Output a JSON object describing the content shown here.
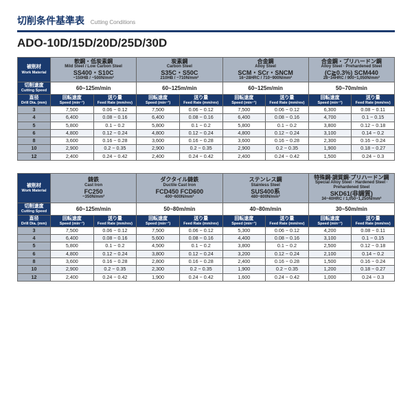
{
  "title_jp": "切削条件基準表",
  "title_en": "Cutting Conditions",
  "model": "ADO-10D/15D/20D/25D/30D",
  "labels": {
    "work_jp": "被削材",
    "work_en": "Work Material",
    "cut_jp": "切削速度",
    "cut_en": "Cutting Speed",
    "dia_jp": "直径",
    "dia_en": "Drill Dia. (mm)",
    "speed_jp": "回転速度",
    "speed_en": "Speed (min⁻¹)",
    "feed_jp": "送り量",
    "feed_en": "Feed Rate (mm/rev)"
  },
  "t1": {
    "materials": [
      {
        "jp": "軟鋼・低炭素鋼",
        "en": "Mild Steel / Low Carbon Steel",
        "code": "SS400・S10C",
        "spec": "~150HB / ~500N/mm²"
      },
      {
        "jp": "炭素鋼",
        "en": "Carbon Steel",
        "code": "S35C・S50C",
        "spec": "210HB / ~710N/mm²"
      },
      {
        "jp": "合金鋼",
        "en": "Alloy Steel",
        "code": "SCM・SCr・SNCM",
        "spec": "16~28HRC / 710~900N/mm²"
      },
      {
        "jp": "合金鋼・プリハードン鋼",
        "en": "Alloy Steel · Prehardened Steel",
        "code": "(C≧0.3%) SCM440",
        "spec": "28~34HRC / 900~1,050N/mm²"
      }
    ],
    "cutspeed": [
      "60~125m/min",
      "60~125m/min",
      "60~125m/min",
      "50~70m/min"
    ],
    "rows": [
      {
        "d": "3",
        "v": [
          "7,500",
          "0.06 ~ 0.12",
          "7,500",
          "0.06 ~ 0.12",
          "7,500",
          "0.06 ~ 0.12",
          "6,300",
          "0.08 ~ 0.11"
        ]
      },
      {
        "d": "4",
        "v": [
          "6,400",
          "0.08 ~ 0.16",
          "6,400",
          "0.08 ~ 0.16",
          "6,400",
          "0.08 ~ 0.16",
          "4,700",
          "0.1 ~ 0.15"
        ]
      },
      {
        "d": "5",
        "v": [
          "5,800",
          "0.1 ~ 0.2",
          "5,800",
          "0.1 ~ 0.2",
          "5,800",
          "0.1 ~ 0.2",
          "3,800",
          "0.12 ~ 0.18"
        ]
      },
      {
        "d": "6",
        "v": [
          "4,800",
          "0.12 ~ 0.24",
          "4,800",
          "0.12 ~ 0.24",
          "4,800",
          "0.12 ~ 0.24",
          "3,100",
          "0.14 ~ 0.2"
        ]
      },
      {
        "d": "8",
        "v": [
          "3,600",
          "0.16 ~ 0.28",
          "3,600",
          "0.16 ~ 0.28",
          "3,600",
          "0.16 ~ 0.28",
          "2,300",
          "0.16 ~ 0.24"
        ]
      },
      {
        "d": "10",
        "v": [
          "2,900",
          "0.2 ~ 0.35",
          "2,900",
          "0.2 ~ 0.35",
          "2,900",
          "0.2 ~ 0.35",
          "1,900",
          "0.18 ~ 0.27"
        ]
      },
      {
        "d": "12",
        "v": [
          "2,400",
          "0.24 ~ 0.42",
          "2,400",
          "0.24 ~ 0.42",
          "2,400",
          "0.24 ~ 0.42",
          "1,500",
          "0.24 ~ 0.3"
        ]
      }
    ]
  },
  "t2": {
    "materials": [
      {
        "jp": "鋳鉄",
        "en": "Cast Iron",
        "code": "FC250",
        "spec": "~350N/mm²"
      },
      {
        "jp": "ダクタイル鋳鉄",
        "en": "Ductile Cast Iron",
        "code": "FCD450 FCD600",
        "spec": "400~600N/mm²"
      },
      {
        "jp": "ステンレス鋼",
        "en": "Stainless Steel",
        "code": "SUS400系",
        "spec": "480~800N/mm²"
      },
      {
        "jp": "特殊鋼·調質鋼·プリハードン鋼",
        "en": "Special Alloy Steel · Hardened Steel · Prehardened Steel",
        "code": "SKD61(非調質)",
        "spec": "34~40HRC / 1,050~1,250N/mm²"
      }
    ],
    "cutspeed": [
      "60~125m/min",
      "50~80m/min",
      "40~80m/min",
      "30~50m/min"
    ],
    "rows": [
      {
        "d": "3",
        "v": [
          "7,500",
          "0.06 ~ 0.12",
          "7,500",
          "0.06 ~ 0.12",
          "5,300",
          "0.06 ~ 0.12",
          "4,200",
          "0.08 ~ 0.11"
        ]
      },
      {
        "d": "4",
        "v": [
          "6,400",
          "0.08 ~ 0.16",
          "5,600",
          "0.08 ~ 0.16",
          "4,400",
          "0.08 ~ 0.16",
          "3,100",
          "0.1 ~ 0.15"
        ]
      },
      {
        "d": "5",
        "v": [
          "5,800",
          "0.1 ~ 0.2",
          "4,500",
          "0.1 ~ 0.2",
          "3,800",
          "0.1 ~ 0.2",
          "2,500",
          "0.12 ~ 0.18"
        ]
      },
      {
        "d": "6",
        "v": [
          "4,800",
          "0.12 ~ 0.24",
          "3,800",
          "0.12 ~ 0.24",
          "3,200",
          "0.12 ~ 0.24",
          "2,100",
          "0.14 ~ 0.2"
        ]
      },
      {
        "d": "8",
        "v": [
          "3,600",
          "0.16 ~ 0.28",
          "2,800",
          "0.16 ~ 0.28",
          "2,400",
          "0.16 ~ 0.28",
          "1,500",
          "0.16 ~ 0.24"
        ]
      },
      {
        "d": "10",
        "v": [
          "2,900",
          "0.2 ~ 0.35",
          "2,300",
          "0.2 ~ 0.35",
          "1,900",
          "0.2 ~ 0.35",
          "1,200",
          "0.18 ~ 0.27"
        ]
      },
      {
        "d": "12",
        "v": [
          "2,400",
          "0.24 ~ 0.42",
          "1,900",
          "0.24 ~ 0.42",
          "1,600",
          "0.24 ~ 0.42",
          "1,000",
          "0.24 ~ 0.3"
        ]
      }
    ]
  }
}
